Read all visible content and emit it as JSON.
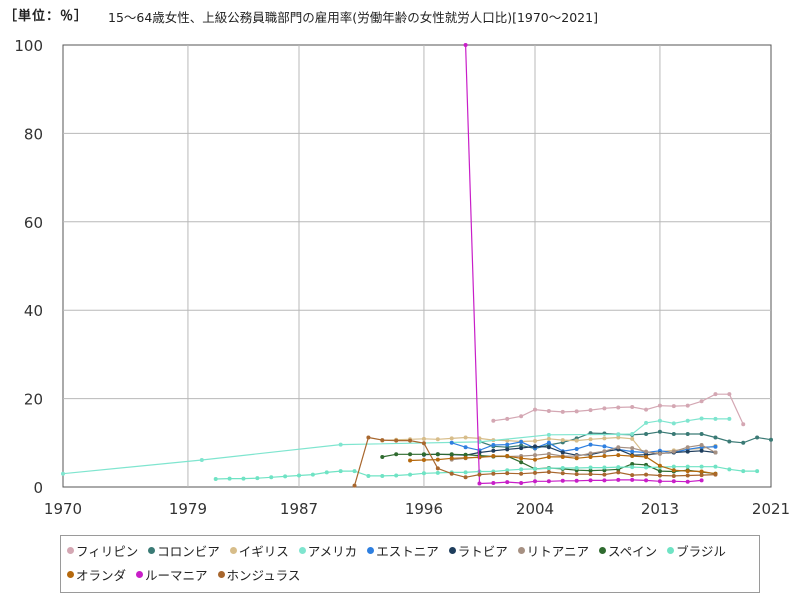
{
  "unit_label": "［単位：％］",
  "chart_data": {
    "type": "line",
    "title": "15～64歳女性、上級公務員職部門の雇用率(労働年齢の女性就労人口比)[1970～2021]",
    "ylim": [
      0,
      100
    ],
    "y_ticks": [
      0,
      20,
      40,
      60,
      80,
      100
    ],
    "xlim": [
      1970,
      2021
    ],
    "x_ticks": [
      1970,
      1979,
      1987,
      1996,
      2004,
      2013,
      2021
    ],
    "grid": true,
    "legend_position": "bottom",
    "series": [
      {
        "name": "フィリピン",
        "color": "#d4a7b3",
        "x": [
          2001,
          2002,
          2003,
          2004,
          2005,
          2006,
          2007,
          2008,
          2009,
          2010,
          2011,
          2012,
          2013,
          2014,
          2015,
          2016,
          2017,
          2018,
          2019
        ],
        "y": [
          15.0,
          15.4,
          16.0,
          17.5,
          17.2,
          17.0,
          17.1,
          17.4,
          17.8,
          18.0,
          18.1,
          17.5,
          18.4,
          18.3,
          18.4,
          19.4,
          21.0,
          21.0,
          14.2
        ]
      },
      {
        "name": "コロンビア",
        "color": "#3a7a75",
        "x": [
          2000,
          2001,
          2002,
          2003,
          2004,
          2005,
          2006,
          2007,
          2008,
          2009,
          2010,
          2011,
          2012,
          2013,
          2014,
          2015,
          2016,
          2017,
          2018,
          2019,
          2020,
          2021
        ],
        "y": [
          10.3,
          9.2,
          9.0,
          9.4,
          8.7,
          9.5,
          10.1,
          11.0,
          12.2,
          12.1,
          11.9,
          11.8,
          12.0,
          12.5,
          12.0,
          12.0,
          12.0,
          11.2,
          10.3,
          10.0,
          11.2,
          10.7
        ]
      },
      {
        "name": "イギリス",
        "color": "#d7bd8a",
        "x": [
          1993,
          1994,
          1995,
          1996,
          1997,
          1998,
          1999,
          2000,
          2001,
          2002,
          2003,
          2004,
          2005,
          2006,
          2007,
          2008,
          2009,
          2010,
          2011,
          2012,
          2013,
          2014,
          2015,
          2016,
          2017
        ],
        "y": [
          10.5,
          10.7,
          10.8,
          10.9,
          10.8,
          11.0,
          11.2,
          11.0,
          10.6,
          10.5,
          10.3,
          10.4,
          10.9,
          10.6,
          10.5,
          10.8,
          11.0,
          11.2,
          10.9,
          7.0,
          8.0,
          8.3,
          8.5,
          8.7,
          9.3
        ]
      },
      {
        "name": "アメリカ",
        "color": "#7fe5cf",
        "x": [
          1970,
          1980,
          1990,
          2000,
          2005,
          2010,
          2011,
          2012,
          2013,
          2014,
          2015,
          2016,
          2017,
          2018
        ],
        "y": [
          3.0,
          6.1,
          9.6,
          10.2,
          11.8,
          11.9,
          12.0,
          14.5,
          15.0,
          14.4,
          15.0,
          15.5,
          15.4,
          15.4
        ]
      },
      {
        "name": "エストニア",
        "color": "#2e7fe0",
        "x": [
          1998,
          1999,
          2000,
          2001,
          2002,
          2003,
          2004,
          2005,
          2006,
          2007,
          2008,
          2009,
          2010,
          2011,
          2012,
          2013,
          2014,
          2015,
          2016,
          2017
        ],
        "y": [
          10.0,
          9.0,
          8.3,
          9.5,
          9.6,
          10.2,
          8.8,
          10.0,
          8.1,
          8.6,
          9.6,
          9.2,
          8.5,
          8.0,
          7.8,
          8.2,
          7.8,
          8.5,
          9.0,
          9.1
        ]
      },
      {
        "name": "ラトビア",
        "color": "#1e3d5c",
        "x": [
          1996,
          1997,
          1998,
          1999,
          2000,
          2001,
          2002,
          2003,
          2004,
          2005,
          2006,
          2007,
          2008,
          2009,
          2010,
          2011,
          2012,
          2013,
          2014,
          2015,
          2016,
          2017
        ],
        "y": [
          7.3,
          7.4,
          7.3,
          7.2,
          7.8,
          8.2,
          8.5,
          8.8,
          9.2,
          9.0,
          7.8,
          7.2,
          7.3,
          8.0,
          8.5,
          7.2,
          7.3,
          7.6,
          7.8,
          8.0,
          8.2,
          7.8
        ]
      },
      {
        "name": "リトアニア",
        "color": "#a69082",
        "x": [
          1998,
          1999,
          2000,
          2001,
          2002,
          2003,
          2004,
          2005,
          2006,
          2007,
          2008,
          2009,
          2010,
          2011,
          2012,
          2013,
          2014,
          2015,
          2016,
          2017
        ],
        "y": [
          6.2,
          6.5,
          6.8,
          6.9,
          6.9,
          7.0,
          7.2,
          7.5,
          7.0,
          7.0,
          7.6,
          8.1,
          9.0,
          8.8,
          8.0,
          7.5,
          8.0,
          9.0,
          9.5,
          7.8
        ]
      },
      {
        "name": "スペイン",
        "color": "#2f6b2f",
        "x": [
          1993,
          1994,
          1995,
          1996,
          1997,
          1998,
          1999,
          2000,
          2001,
          2002,
          2003,
          2004,
          2005,
          2006,
          2007,
          2008,
          2009,
          2010,
          2011,
          2012,
          2013,
          2014,
          2015,
          2016,
          2017
        ],
        "y": [
          6.8,
          7.4,
          7.4,
          7.4,
          7.4,
          7.4,
          7.3,
          7.1,
          6.9,
          7.0,
          5.6,
          4.1,
          4.3,
          4.1,
          3.8,
          3.7,
          3.8,
          4.0,
          5.2,
          5.0,
          3.6,
          3.5,
          3.8,
          3.4,
          3.0
        ]
      },
      {
        "name": "ブラジル",
        "color": "#6fe3c4",
        "x": [
          1981,
          1982,
          1983,
          1984,
          1985,
          1986,
          1987,
          1988,
          1989,
          1990,
          1991,
          1992,
          1993,
          1994,
          1995,
          1996,
          1997,
          1998,
          1999,
          2000,
          2001,
          2002,
          2003,
          2004,
          2005,
          2006,
          2007,
          2008,
          2009,
          2010,
          2011,
          2012,
          2013,
          2014,
          2015,
          2016,
          2017,
          2018,
          2019,
          2020
        ],
        "y": [
          1.8,
          1.9,
          1.9,
          2.0,
          2.2,
          2.4,
          2.6,
          2.8,
          3.3,
          3.6,
          3.6,
          2.5,
          2.5,
          2.6,
          2.8,
          3.1,
          3.2,
          3.3,
          3.3,
          3.5,
          3.5,
          3.8,
          4.0,
          4.1,
          4.2,
          4.3,
          4.3,
          4.4,
          4.4,
          4.5,
          4.5,
          4.4,
          4.5,
          4.6,
          4.6,
          4.6,
          4.6,
          4.0,
          3.6,
          3.6
        ]
      },
      {
        "name": "オランダ",
        "color": "#b5690e",
        "x": [
          1995,
          1996,
          1997,
          1998,
          1999,
          2000,
          2001,
          2002,
          2003,
          2004,
          2005,
          2006,
          2007,
          2008,
          2009,
          2010,
          2011,
          2012,
          2013,
          2014,
          2015,
          2016,
          2017
        ],
        "y": [
          6.0,
          6.1,
          6.2,
          6.5,
          6.6,
          6.7,
          7.0,
          7.0,
          6.5,
          6.2,
          6.8,
          6.8,
          6.5,
          6.8,
          7.0,
          7.2,
          7.0,
          6.8,
          4.8,
          3.8,
          3.6,
          3.5,
          3.0
        ]
      },
      {
        "name": "ルーマニア",
        "color": "#c81ec8",
        "x": [
          1999,
          2000,
          2001,
          2002,
          2003,
          2004,
          2005,
          2006,
          2007,
          2008,
          2009,
          2010,
          2011,
          2012,
          2013,
          2014,
          2015,
          2016
        ],
        "y": [
          100.0,
          0.8,
          0.9,
          1.1,
          0.9,
          1.3,
          1.3,
          1.4,
          1.4,
          1.5,
          1.5,
          1.6,
          1.6,
          1.5,
          1.3,
          1.3,
          1.2,
          1.5
        ]
      },
      {
        "name": "ホンジュラス",
        "color": "#a8672e",
        "x": [
          1991,
          1992,
          1993,
          1994,
          1995,
          1996,
          1997,
          1998,
          1999,
          2000,
          2001,
          2002,
          2003,
          2004,
          2005,
          2006,
          2007,
          2008,
          2009,
          2010,
          2011,
          2012,
          2013,
          2014,
          2015,
          2016,
          2017
        ],
        "y": [
          0.3,
          11.2,
          10.6,
          10.5,
          10.5,
          9.9,
          4.2,
          3.0,
          2.2,
          2.8,
          3.0,
          3.1,
          3.0,
          3.2,
          3.4,
          3.1,
          2.9,
          2.9,
          2.8,
          3.3,
          2.7,
          2.8,
          2.6,
          2.5,
          2.6,
          2.7,
          2.8
        ]
      }
    ]
  }
}
